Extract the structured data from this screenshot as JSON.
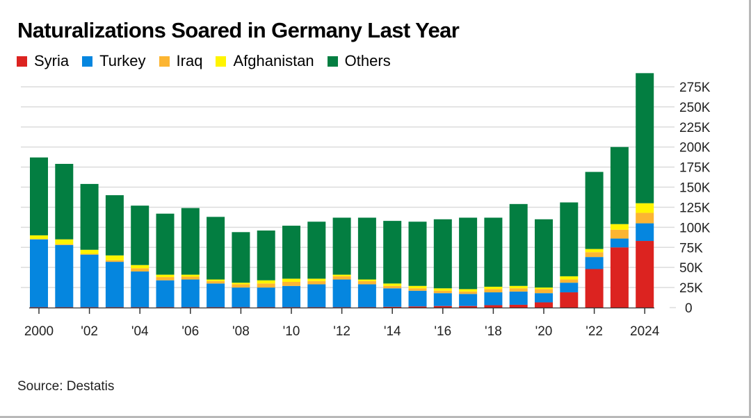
{
  "title": "Naturalizations Soared in Germany Last Year",
  "source": "Source: Destatis",
  "legend": [
    {
      "name": "Syria",
      "color": "#dc2320"
    },
    {
      "name": "Turkey",
      "color": "#0586df"
    },
    {
      "name": "Iraq",
      "color": "#fcb532"
    },
    {
      "name": "Afghanistan",
      "color": "#fff400"
    },
    {
      "name": "Others",
      "color": "#037e41"
    }
  ],
  "chart_data": {
    "type": "bar",
    "stacked": true,
    "title": "Naturalizations Soared in Germany Last Year",
    "xlabel": "",
    "ylabel": "",
    "units": "thousands",
    "categories": [
      "2000",
      "2001",
      "2002",
      "2003",
      "2004",
      "2005",
      "2006",
      "2007",
      "2008",
      "2009",
      "2010",
      "2011",
      "2012",
      "2013",
      "2014",
      "2015",
      "2016",
      "2017",
      "2018",
      "2019",
      "2020",
      "2021",
      "2022",
      "2023",
      "2024"
    ],
    "x_tick_labels": [
      {
        "index": 0,
        "label": "2000"
      },
      {
        "index": 2,
        "label": "'02"
      },
      {
        "index": 4,
        "label": "'04"
      },
      {
        "index": 6,
        "label": "'06"
      },
      {
        "index": 8,
        "label": "'08"
      },
      {
        "index": 10,
        "label": "'10"
      },
      {
        "index": 12,
        "label": "'12"
      },
      {
        "index": 14,
        "label": "'14"
      },
      {
        "index": 16,
        "label": "'16"
      },
      {
        "index": 18,
        "label": "'18"
      },
      {
        "index": 20,
        "label": "'20"
      },
      {
        "index": 22,
        "label": "'22"
      },
      {
        "index": 24,
        "label": "2024"
      }
    ],
    "series": [
      {
        "name": "Syria",
        "color": "#dc2320",
        "values": [
          0.5,
          0.5,
          0.5,
          0.5,
          0.5,
          0.5,
          0.5,
          0.5,
          0.5,
          0.5,
          0.5,
          0.5,
          0.5,
          0.5,
          1,
          1.5,
          2,
          2,
          3,
          3.5,
          6.5,
          19,
          48,
          75,
          83
        ]
      },
      {
        "name": "Turkey",
        "color": "#0586df",
        "values": [
          84.5,
          77.5,
          65.5,
          56.5,
          44.5,
          33.5,
          34.5,
          29.5,
          24.5,
          24.5,
          26.5,
          28.5,
          34.5,
          28.5,
          23,
          19.5,
          16,
          15,
          16,
          16.5,
          11.5,
          12,
          15,
          11,
          22
        ]
      },
      {
        "name": "Iraq",
        "color": "#fcb532",
        "values": [
          0.5,
          1,
          1,
          2,
          4,
          4,
          3.5,
          3,
          4,
          5,
          5,
          4,
          4,
          4,
          3,
          3,
          3,
          3,
          4,
          4,
          5,
          4,
          6,
          11,
          13
        ]
      },
      {
        "name": "Afghanistan",
        "color": "#fff400",
        "values": [
          4.5,
          6,
          5,
          6,
          4,
          3,
          2.5,
          2,
          2,
          4,
          4,
          3,
          2,
          2,
          3,
          3,
          3,
          3,
          3,
          3,
          2,
          4,
          4,
          7,
          12
        ]
      },
      {
        "name": "Others",
        "color": "#037e41",
        "values": [
          97,
          94,
          82,
          75,
          74,
          76,
          83,
          78,
          63,
          62,
          66,
          71,
          71,
          77,
          78,
          80,
          86,
          89,
          86,
          102,
          85,
          92,
          96,
          96,
          162
        ]
      }
    ],
    "totals": [
      187,
      179,
      154,
      140,
      127,
      117,
      124,
      113,
      94,
      96,
      102,
      107,
      112,
      112,
      108,
      107,
      110,
      112,
      112,
      129,
      110,
      131,
      169,
      200,
      292
    ],
    "ylim": [
      0,
      300
    ],
    "y_ticks": [
      0,
      25,
      50,
      75,
      100,
      125,
      150,
      175,
      200,
      225,
      250,
      275
    ],
    "y_tick_labels": [
      "0",
      "25K",
      "50K",
      "75K",
      "100K",
      "125K",
      "150K",
      "175K",
      "200K",
      "225K",
      "250K",
      "275K"
    ],
    "y_axis_position": "right",
    "grid": true,
    "legend_position": "top-left"
  }
}
